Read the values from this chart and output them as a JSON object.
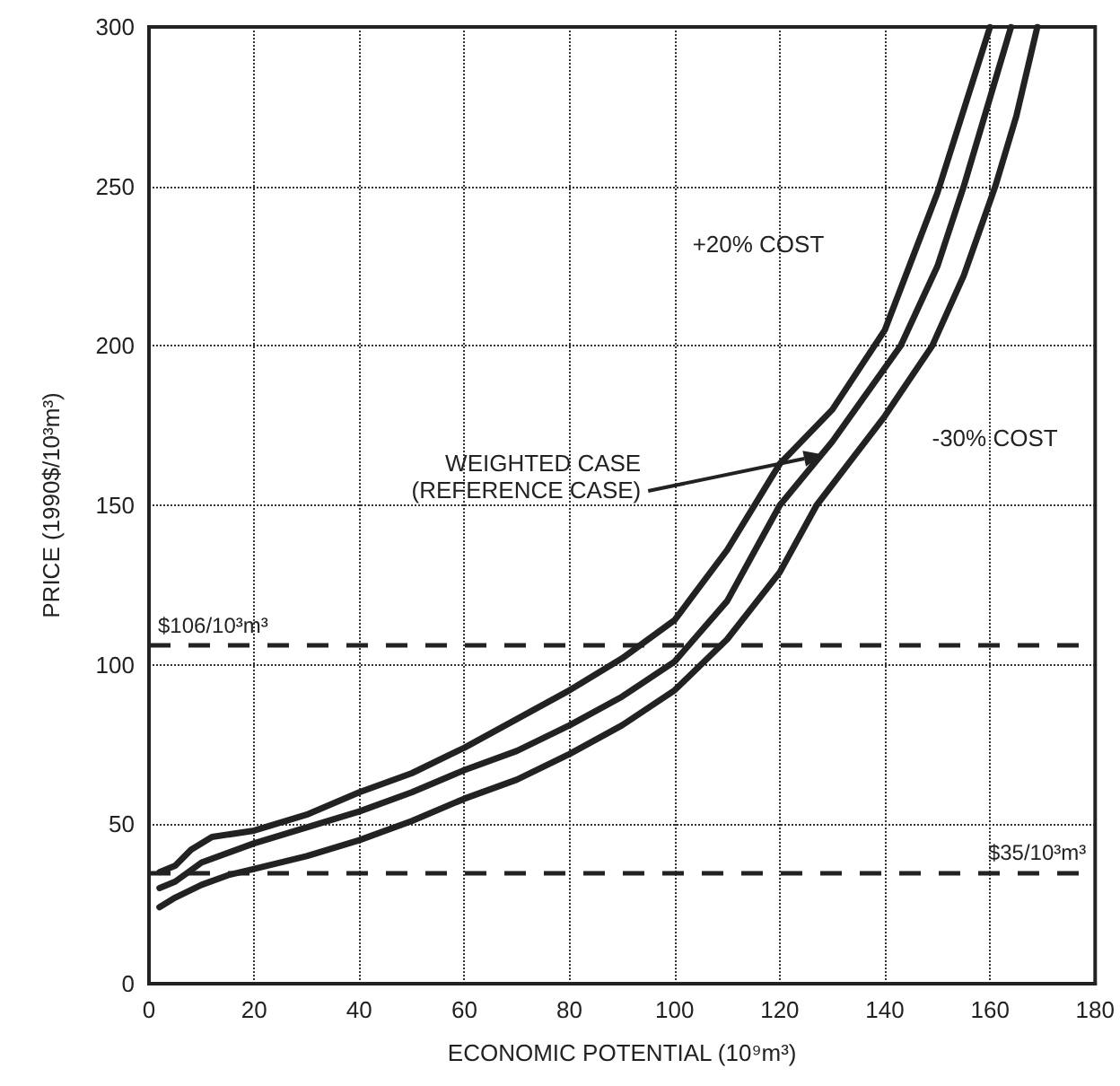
{
  "chart_data": {
    "type": "line",
    "xlabel": "ECONOMIC POTENTIAL (10⁹m³)",
    "ylabel": "PRICE (1990$/10³m³)",
    "xlim": [
      0,
      180
    ],
    "xticks": [
      0,
      20,
      40,
      60,
      80,
      100,
      120,
      140,
      160,
      180
    ],
    "ylim": [
      0,
      300
    ],
    "yticks": [
      0,
      50,
      100,
      150,
      200,
      250,
      300
    ],
    "grid": true,
    "marker": "none",
    "line_style": "solid",
    "series": [
      {
        "color": "#222222",
        "x": [
          2,
          5,
          8,
          12,
          20,
          30,
          40,
          50,
          60,
          70,
          80,
          90,
          100,
          110,
          120,
          130,
          140,
          150,
          160
        ],
        "values": [
          35,
          37,
          42,
          46,
          48,
          53,
          60,
          66,
          74,
          83,
          92,
          102,
          114,
          136,
          163,
          180,
          205,
          248,
          300
        ]
      },
      {
        "color": "#222222",
        "x": [
          2,
          5,
          10,
          20,
          30,
          40,
          50,
          60,
          70,
          80,
          90,
          100,
          110,
          120,
          130,
          143,
          150,
          155,
          164
        ],
        "values": [
          30,
          32,
          38,
          44,
          49,
          54,
          60,
          67,
          73,
          81,
          90,
          101,
          120,
          150,
          170,
          200,
          225,
          250,
          300
        ]
      },
      {
        "color": "#222222",
        "x": [
          2,
          5,
          10,
          15,
          20,
          30,
          40,
          50,
          60,
          70,
          80,
          90,
          100,
          110,
          120,
          127,
          140,
          149,
          155,
          161,
          165,
          169
        ],
        "values": [
          24,
          27,
          31,
          34,
          36,
          40,
          45,
          51,
          58,
          64,
          72,
          81,
          92,
          108,
          129,
          150,
          178,
          200,
          222,
          250,
          272,
          300
        ]
      }
    ],
    "ref_lines": [
      {
        "axis": "y",
        "value": 106,
        "label": "$106/10³m³",
        "line_style": "dashed"
      },
      {
        "axis": "y",
        "value": 35,
        "label": "$35/10³m³",
        "line_style": "dashed"
      }
    ],
    "annotations": [
      "+20% COST",
      "WEIGHTED CASE\n(REFERENCE CASE)",
      "-30% COST"
    ]
  }
}
